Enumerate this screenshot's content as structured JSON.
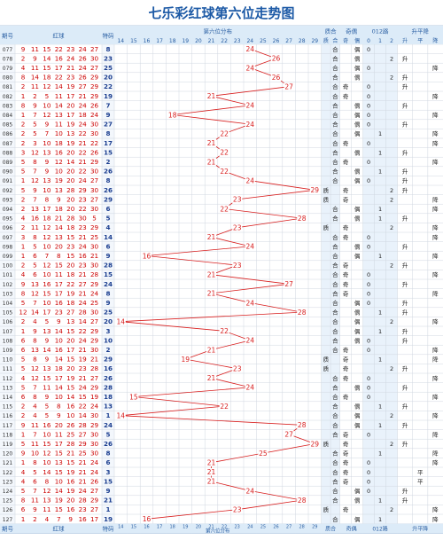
{
  "title": "七乐彩红球第六位走势图",
  "header": {
    "col_issue": "期号",
    "col_red": "红球",
    "col_special": "特码",
    "col_dist": "第六位分布",
    "col_prime": "质合",
    "col_odd": "奇偶",
    "col_mod": "012路",
    "col_trend": "升平降",
    "sub_prime": [
      "质",
      "合"
    ],
    "sub_odd": [
      "奇",
      "偶"
    ],
    "sub_mod": [
      "0",
      "1",
      "2"
    ],
    "sub_trend": [
      "升",
      "平",
      "降"
    ]
  },
  "footer": {
    "col_issue": "期号",
    "col_red": "红球",
    "col_special": "特码",
    "col_dist": "第六位分布",
    "col_prime": "质合",
    "col_odd": "奇偶",
    "col_mod": "012路",
    "col_trend": "升平降"
  },
  "chart_data": {
    "type": "line",
    "title": "七乐彩红球第六位走势图",
    "x_axis": [
      14,
      15,
      16,
      17,
      18,
      19,
      20,
      21,
      22,
      23,
      24,
      25,
      26,
      27,
      28,
      29
    ],
    "rows": [
      {
        "issue": "077",
        "reds": [
          9,
          11,
          15,
          22,
          23,
          24,
          27
        ],
        "special": 8
      },
      {
        "issue": "078",
        "reds": [
          2,
          9,
          14,
          16,
          24,
          26,
          30
        ],
        "special": 23
      },
      {
        "issue": "079",
        "reds": [
          4,
          11,
          15,
          17,
          21,
          24,
          27
        ],
        "special": 25
      },
      {
        "issue": "080",
        "reds": [
          8,
          14,
          18,
          22,
          23,
          26,
          29
        ],
        "special": 20
      },
      {
        "issue": "081",
        "reds": [
          2,
          11,
          12,
          14,
          19,
          27,
          29
        ],
        "special": 22
      },
      {
        "issue": "082",
        "reds": [
          1,
          2,
          5,
          11,
          17,
          21,
          29
        ],
        "special": 19
      },
      {
        "issue": "083",
        "reds": [
          8,
          9,
          10,
          14,
          20,
          24,
          26
        ],
        "special": 7
      },
      {
        "issue": "084",
        "reds": [
          1,
          7,
          12,
          13,
          17,
          18,
          24
        ],
        "special": 9
      },
      {
        "issue": "085",
        "reds": [
          2,
          5,
          9,
          11,
          19,
          24,
          30
        ],
        "special": 27
      },
      {
        "issue": "086",
        "reds": [
          2,
          5,
          7,
          10,
          13,
          22,
          30
        ],
        "special": 8
      },
      {
        "issue": "087",
        "reds": [
          2,
          3,
          10,
          18,
          19,
          21,
          22
        ],
        "special": 17
      },
      {
        "issue": "088",
        "reds": [
          3,
          12,
          13,
          16,
          20,
          22,
          26
        ],
        "special": 15
      },
      {
        "issue": "089",
        "reds": [
          5,
          8,
          9,
          12,
          14,
          21,
          29
        ],
        "special": 2
      },
      {
        "issue": "090",
        "reds": [
          5,
          7,
          9,
          10,
          20,
          22,
          30
        ],
        "special": 26
      },
      {
        "issue": "091",
        "reds": [
          1,
          12,
          13,
          19,
          20,
          24,
          27
        ],
        "special": 8
      },
      {
        "issue": "092",
        "reds": [
          5,
          9,
          10,
          13,
          28,
          29,
          30
        ],
        "special": 26
      },
      {
        "issue": "093",
        "reds": [
          2,
          7,
          8,
          9,
          20,
          23,
          27
        ],
        "special": 29
      },
      {
        "issue": "094",
        "reds": [
          2,
          13,
          17,
          18,
          20,
          22,
          30
        ],
        "special": 6
      },
      {
        "issue": "095",
        "reds": [
          4,
          16,
          18,
          21,
          28,
          30,
          5
        ],
        "special": 5
      },
      {
        "issue": "096",
        "reds": [
          2,
          11,
          12,
          14,
          18,
          23,
          29
        ],
        "special": 4
      },
      {
        "issue": "097",
        "reds": [
          3,
          8,
          12,
          13,
          15,
          21,
          25
        ],
        "special": 14
      },
      {
        "issue": "098",
        "reds": [
          1,
          5,
          10,
          20,
          23,
          24,
          30
        ],
        "special": 6
      },
      {
        "issue": "099",
        "reds": [
          1,
          6,
          7,
          8,
          15,
          16,
          21
        ],
        "special": 9
      },
      {
        "issue": "100",
        "reds": [
          2,
          5,
          12,
          15,
          20,
          23,
          30
        ],
        "special": 28
      },
      {
        "issue": "101",
        "reds": [
          4,
          6,
          10,
          11,
          18,
          21,
          28
        ],
        "special": 15
      },
      {
        "issue": "102",
        "reds": [
          9,
          13,
          16,
          17,
          22,
          27,
          29
        ],
        "special": 24
      },
      {
        "issue": "103",
        "reds": [
          8,
          12,
          15,
          17,
          19,
          21,
          24
        ],
        "special": 8
      },
      {
        "issue": "104",
        "reds": [
          5,
          7,
          10,
          16,
          18,
          24,
          25
        ],
        "special": 9
      },
      {
        "issue": "105",
        "reds": [
          12,
          14,
          17,
          23,
          27,
          28,
          30
        ],
        "special": 25
      },
      {
        "issue": "106",
        "reds": [
          2,
          4,
          5,
          9,
          13,
          14,
          27
        ],
        "special": 20
      },
      {
        "issue": "107",
        "reds": [
          1,
          9,
          13,
          14,
          15,
          22,
          29
        ],
        "special": 3
      },
      {
        "issue": "108",
        "reds": [
          6,
          8,
          9,
          10,
          20,
          24,
          29
        ],
        "special": 10
      },
      {
        "issue": "109",
        "reds": [
          6,
          13,
          14,
          16,
          17,
          21,
          30
        ],
        "special": 2
      },
      {
        "issue": "110",
        "reds": [
          5,
          8,
          9,
          14,
          15,
          19,
          21
        ],
        "special": 29
      },
      {
        "issue": "111",
        "reds": [
          5,
          12,
          13,
          18,
          20,
          23,
          28
        ],
        "special": 16
      },
      {
        "issue": "112",
        "reds": [
          4,
          12,
          15,
          17,
          19,
          21,
          27
        ],
        "special": 26
      },
      {
        "issue": "113",
        "reds": [
          5,
          7,
          11,
          14,
          15,
          24,
          29
        ],
        "special": 28
      },
      {
        "issue": "114",
        "reds": [
          6,
          8,
          9,
          10,
          14,
          15,
          19
        ],
        "special": 18
      },
      {
        "issue": "115",
        "reds": [
          2,
          4,
          5,
          8,
          16,
          22,
          24
        ],
        "special": 13
      },
      {
        "issue": "116",
        "reds": [
          2,
          4,
          5,
          9,
          10,
          14,
          30
        ],
        "special": 1
      },
      {
        "issue": "117",
        "reds": [
          9,
          11,
          16,
          20,
          26,
          28,
          29
        ],
        "special": 24
      },
      {
        "issue": "118",
        "reds": [
          1,
          7,
          10,
          11,
          25,
          27,
          30
        ],
        "special": 5
      },
      {
        "issue": "119",
        "reds": [
          5,
          11,
          15,
          17,
          28,
          29,
          30
        ],
        "special": 26
      },
      {
        "issue": "120",
        "reds": [
          9,
          10,
          12,
          15,
          21,
          25,
          30
        ],
        "special": 8
      },
      {
        "issue": "121",
        "reds": [
          1,
          8,
          10,
          13,
          15,
          21,
          24
        ],
        "special": 6
      },
      {
        "issue": "122",
        "reds": [
          4,
          5,
          14,
          15,
          19,
          21,
          24
        ],
        "special": 3
      },
      {
        "issue": "123",
        "reds": [
          4,
          6,
          8,
          10,
          16,
          21,
          26
        ],
        "special": 15
      },
      {
        "issue": "124",
        "reds": [
          5,
          7,
          12,
          14,
          19,
          24,
          27
        ],
        "special": 9
      },
      {
        "issue": "125",
        "reds": [
          8,
          11,
          13,
          19,
          20,
          28,
          29
        ],
        "special": 21
      },
      {
        "issue": "126",
        "reds": [
          6,
          9,
          11,
          15,
          16,
          23,
          27
        ],
        "special": 1
      },
      {
        "issue": "127",
        "reds": [
          1,
          2,
          4,
          7,
          9,
          16,
          17
        ],
        "special": 19
      }
    ],
    "sixth_values": [
      24,
      26,
      24,
      26,
      27,
      21,
      24,
      18,
      24,
      22,
      21,
      22,
      21,
      22,
      24,
      29,
      23,
      22,
      28,
      23,
      21,
      24,
      16,
      23,
      21,
      27,
      21,
      24,
      28,
      14,
      22,
      24,
      21,
      19,
      23,
      21,
      24,
      15,
      22,
      14,
      28,
      27,
      29,
      25,
      21,
      21,
      21,
      24,
      28,
      23,
      16
    ],
    "prime_composite": [
      "合",
      "合",
      "合",
      "合",
      "合",
      "合",
      "合",
      "合",
      "合",
      "合",
      "合",
      "合",
      "合",
      "合",
      "合",
      "质",
      "质",
      "合",
      "合",
      "质",
      "合",
      "合",
      "合",
      "合",
      "合",
      "合",
      "合",
      "合",
      "合",
      "合",
      "合",
      "合",
      "合",
      "质",
      "质",
      "合",
      "合",
      "合",
      "合",
      "合",
      "合",
      "合",
      "质",
      "合",
      "合",
      "合",
      "合",
      "合",
      "合",
      "质",
      "合"
    ],
    "odd_even": [
      "偶",
      "偶",
      "偶",
      "偶",
      "奇",
      "奇",
      "偶",
      "偶",
      "偶",
      "偶",
      "奇",
      "偶",
      "奇",
      "偶",
      "偶",
      "奇",
      "奇",
      "偶",
      "偶",
      "奇",
      "奇",
      "偶",
      "偶",
      "奇",
      "奇",
      "奇",
      "奇",
      "偶",
      "偶",
      "偶",
      "偶",
      "偶",
      "奇",
      "奇",
      "奇",
      "奇",
      "偶",
      "奇",
      "偶",
      "偶",
      "偶",
      "奇",
      "奇",
      "奇",
      "奇",
      "奇",
      "奇",
      "偶",
      "偶",
      "奇",
      "偶"
    ],
    "mod3": [
      0,
      2,
      0,
      2,
      0,
      0,
      0,
      0,
      0,
      1,
      0,
      1,
      0,
      1,
      0,
      2,
      2,
      1,
      1,
      2,
      0,
      0,
      1,
      2,
      0,
      0,
      0,
      0,
      1,
      2,
      1,
      0,
      0,
      1,
      2,
      0,
      0,
      0,
      1,
      2,
      1,
      0,
      2,
      1,
      0,
      0,
      0,
      0,
      1,
      2,
      1
    ],
    "trend": [
      "",
      "升",
      "降",
      "升",
      "升",
      "降",
      "升",
      "降",
      "升",
      "降",
      "降",
      "升",
      "降",
      "升",
      "升",
      "升",
      "降",
      "降",
      "升",
      "降",
      "降",
      "升",
      "降",
      "升",
      "降",
      "升",
      "降",
      "升",
      "升",
      "降",
      "升",
      "升",
      "降",
      "降",
      "升",
      "降",
      "升",
      "降",
      "升",
      "降",
      "升",
      "降",
      "升",
      "降",
      "降",
      "平",
      "平",
      "升",
      "升",
      "降",
      "降"
    ],
    "colors": {
      "header_bg": "#dcebf8",
      "header_text": "#2a5fa3",
      "title_color": "#1d5aa6",
      "red_number": "#cc0000",
      "special_number": "#1a3d8f",
      "trend_line": "#d81e1e",
      "grid_line": "#d0d7e0",
      "alt_band": "#eef4fb"
    }
  }
}
